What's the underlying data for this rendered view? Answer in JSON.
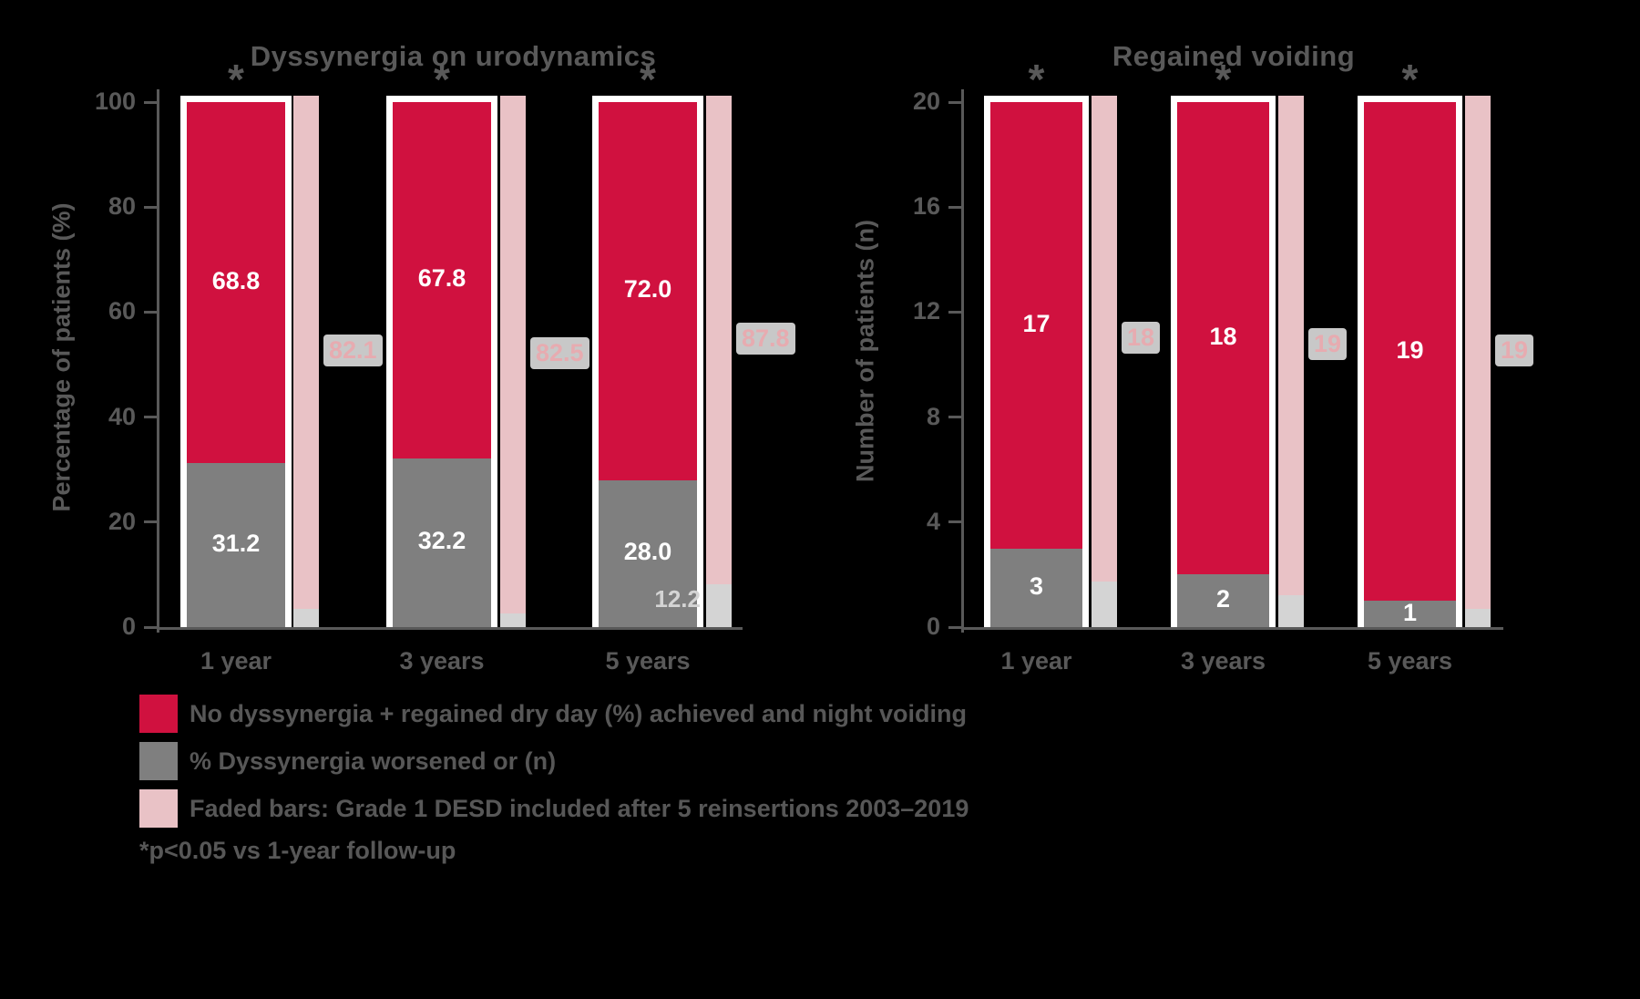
{
  "colors": {
    "red": "#d0113f",
    "gray": "#7f7f7f",
    "pink": "#e9c2c6",
    "pale_gray": "#d4d4d4",
    "axis_text": "#595959",
    "chip_bg": "#c8c8c8",
    "chip_text": "#e7abb0",
    "white": "#ffffff"
  },
  "chart_data": [
    {
      "type": "bar",
      "stacked": true,
      "title": "Dyssynergia on urodynamics",
      "ylabel": "Percentage of patients (%)",
      "categories": [
        "1 year",
        "3 years",
        "5 years"
      ],
      "ylim": [
        0,
        100
      ],
      "yticks": [
        100,
        80,
        60,
        40,
        20,
        0
      ],
      "grid": false,
      "legend_position": "bottom",
      "series": [
        {
          "name": "resolved-red",
          "color_key": "red",
          "values": [
            68.8,
            67.8,
            72.0
          ],
          "labels": [
            "68.8",
            "67.8",
            "72.0"
          ]
        },
        {
          "name": "persistent-gray",
          "color_key": "gray",
          "values": [
            31.2,
            32.2,
            28.0
          ],
          "labels": [
            "31.2",
            "32.2",
            "28.0"
          ]
        }
      ],
      "faded_bars": {
        "labels": [
          "82.1",
          "82.5",
          "87.8"
        ],
        "bottom_labels": [
          "",
          "",
          "12.2"
        ],
        "draw_top_pct": [
          96.5,
          97.5,
          92.0
        ]
      },
      "significance": [
        "*",
        "*",
        "*"
      ]
    },
    {
      "type": "bar",
      "stacked": true,
      "title": "Regained voiding",
      "ylabel": "Number of patients (n)",
      "categories": [
        "1 year",
        "3 years",
        "5 years"
      ],
      "ylim": [
        0,
        20
      ],
      "yticks": [
        20,
        16,
        12,
        8,
        4,
        0
      ],
      "grid": false,
      "legend_position": "bottom",
      "series": [
        {
          "name": "resolved-red",
          "color_key": "red",
          "values": [
            17,
            18,
            19
          ],
          "labels": [
            "17",
            "18",
            "19"
          ]
        },
        {
          "name": "persistent-gray",
          "color_key": "gray",
          "values": [
            3,
            2,
            1
          ],
          "labels": [
            "3",
            "2",
            "1"
          ]
        }
      ],
      "faded_bars": {
        "labels": [
          "18",
          "19",
          "19"
        ],
        "bottom_labels": [
          "",
          "",
          ""
        ],
        "draw_top_pct": [
          91.5,
          94.0,
          96.5
        ]
      },
      "significance": [
        "*",
        "*",
        "*"
      ]
    }
  ],
  "legend": {
    "items": [
      {
        "swatch": "red",
        "text": "No dyssynergia + regained dry day (%) achieved and night voiding"
      },
      {
        "swatch": "gray",
        "text": "% Dyssynergia worsened or (n)"
      },
      {
        "swatch": "pink",
        "text": "Faded bars: Grade 1 DESD included after 5 reinsertions 2003–2019"
      }
    ],
    "footnote": "*p<0.05 vs 1-year follow-up"
  }
}
